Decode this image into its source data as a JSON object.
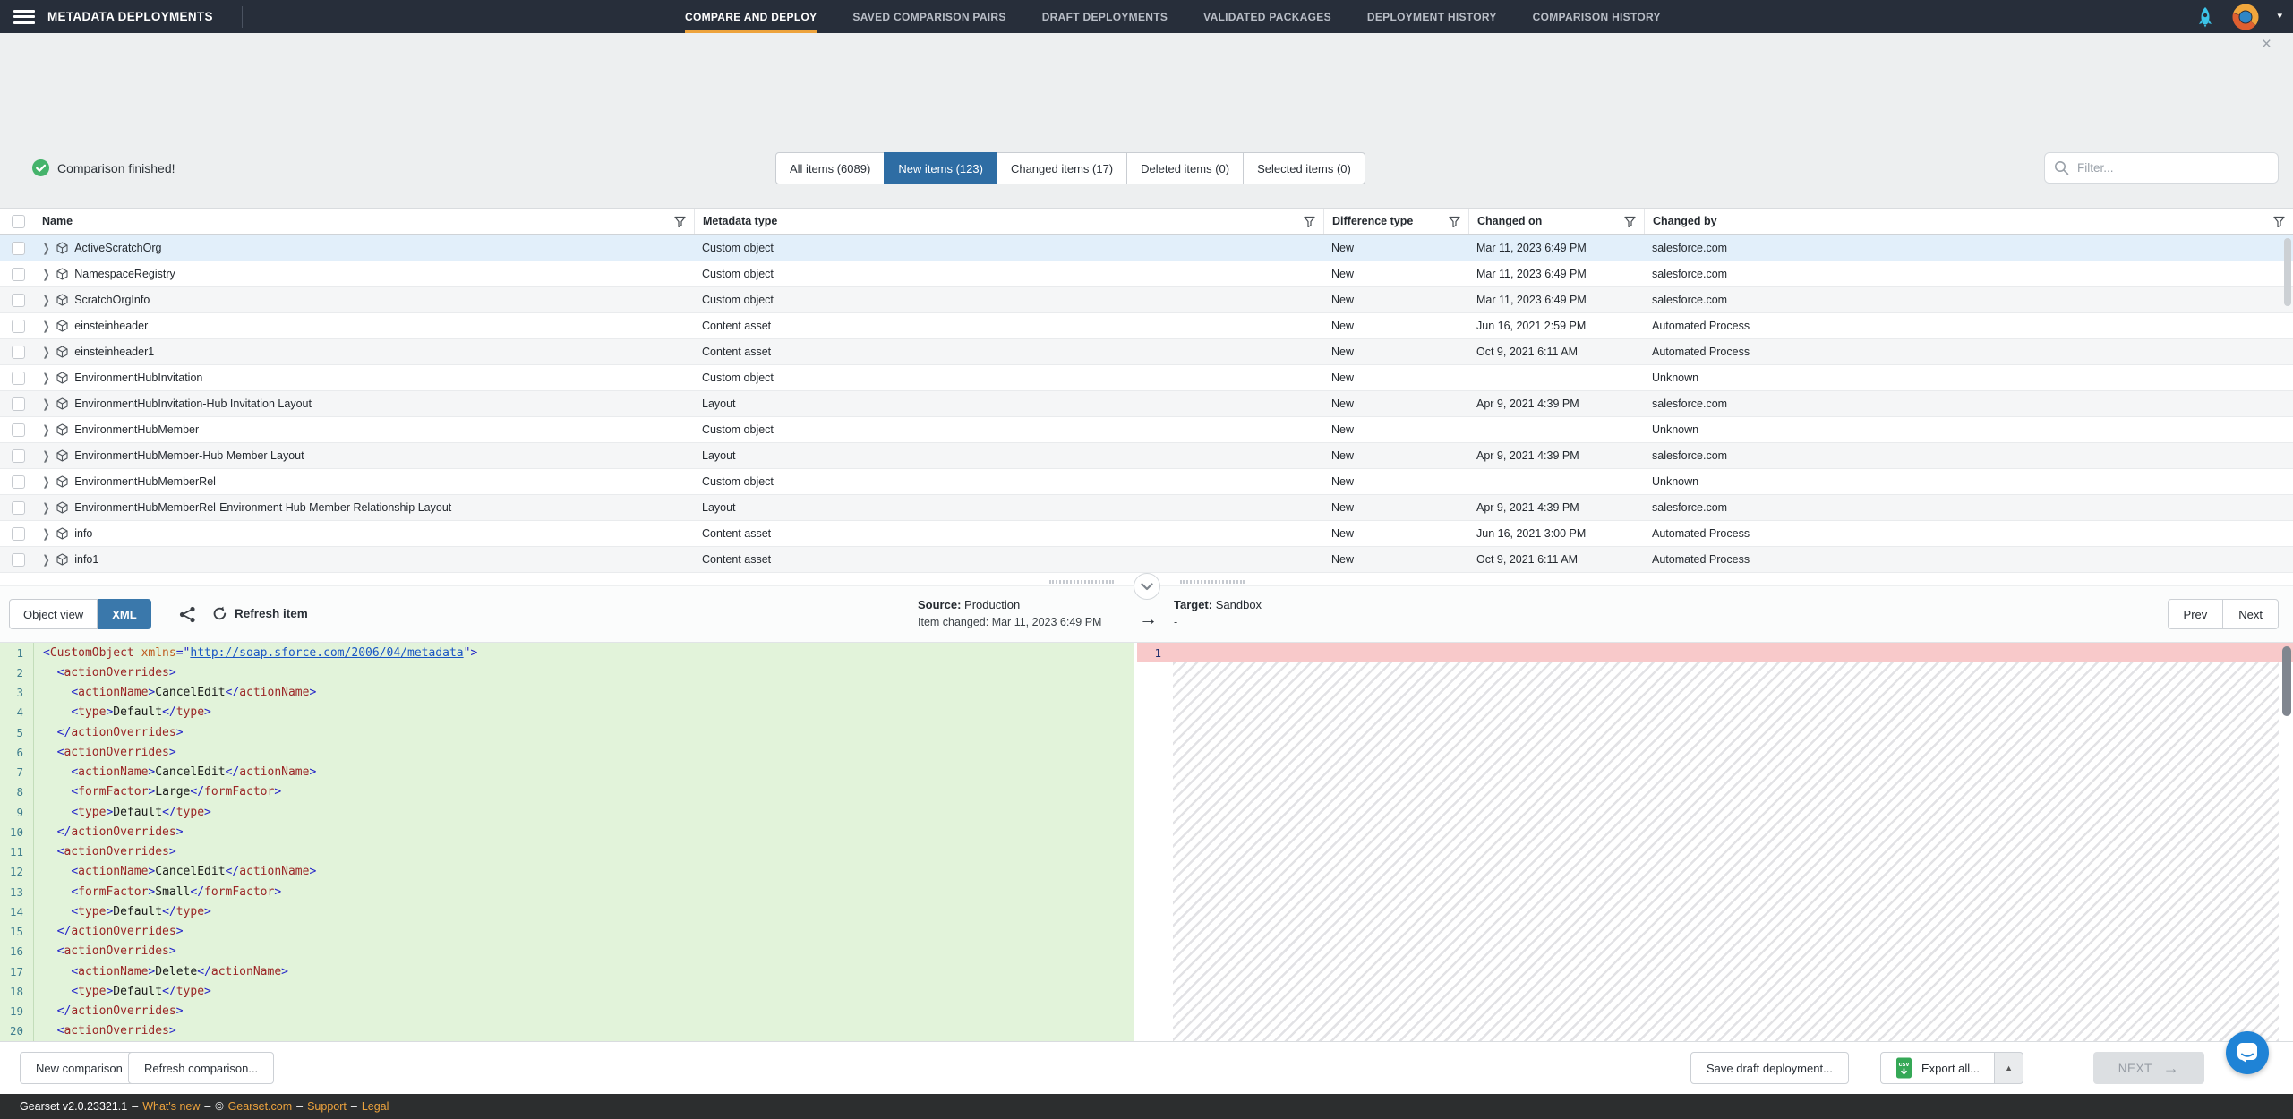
{
  "nav": {
    "title": "METADATA DEPLOYMENTS",
    "items": [
      {
        "label": "COMPARE AND DEPLOY",
        "active": true
      },
      {
        "label": "SAVED COMPARISON PAIRS",
        "active": false
      },
      {
        "label": "DRAFT DEPLOYMENTS",
        "active": false
      },
      {
        "label": "VALIDATED PACKAGES",
        "active": false
      },
      {
        "label": "DEPLOYMENT HISTORY",
        "active": false
      },
      {
        "label": "COMPARISON HISTORY",
        "active": false
      }
    ]
  },
  "icons": {
    "close": "×",
    "caret_down": "▾",
    "caret_up": "▲",
    "arrow_right": "→",
    "chevron_right": "❯",
    "csv_label": "csv"
  },
  "colors": {
    "accent_orange": "#eda33d",
    "active_tab_blue": "#2e6da4",
    "diff_added_green": "#e2f3da",
    "diff_removed_pink": "#f8c9ca",
    "success_green": "#45b36b",
    "intercom_blue": "#1f83d6"
  },
  "status": {
    "message": "Comparison finished!"
  },
  "item_tabs": [
    {
      "label": "All items (6089)",
      "active": false
    },
    {
      "label": "New items (123)",
      "active": true
    },
    {
      "label": "Changed items (17)",
      "active": false
    },
    {
      "label": "Deleted items (0)",
      "active": false
    },
    {
      "label": "Selected items (0)",
      "active": false
    }
  ],
  "filter": {
    "placeholder": "Filter..."
  },
  "table": {
    "columns": [
      "Name",
      "Metadata type",
      "Difference type",
      "Changed on",
      "Changed by"
    ],
    "rows": [
      {
        "name": "ActiveScratchOrg",
        "type": "Custom object",
        "diff": "New",
        "changed_on": "Mar 11, 2023 6:49 PM",
        "changed_by": "salesforce.com",
        "selected": true
      },
      {
        "name": "NamespaceRegistry",
        "type": "Custom object",
        "diff": "New",
        "changed_on": "Mar 11, 2023 6:49 PM",
        "changed_by": "salesforce.com",
        "selected": false
      },
      {
        "name": "ScratchOrgInfo",
        "type": "Custom object",
        "diff": "New",
        "changed_on": "Mar 11, 2023 6:49 PM",
        "changed_by": "salesforce.com",
        "selected": false
      },
      {
        "name": "einsteinheader",
        "type": "Content asset",
        "diff": "New",
        "changed_on": "Jun 16, 2021 2:59 PM",
        "changed_by": "Automated Process",
        "selected": false
      },
      {
        "name": "einsteinheader1",
        "type": "Content asset",
        "diff": "New",
        "changed_on": "Oct 9, 2021 6:11 AM",
        "changed_by": "Automated Process",
        "selected": false
      },
      {
        "name": "EnvironmentHubInvitation",
        "type": "Custom object",
        "diff": "New",
        "changed_on": "",
        "changed_by": "Unknown",
        "selected": false
      },
      {
        "name": "EnvironmentHubInvitation-Hub Invitation Layout",
        "type": "Layout",
        "diff": "New",
        "changed_on": "Apr 9, 2021 4:39 PM",
        "changed_by": "salesforce.com",
        "selected": false
      },
      {
        "name": "EnvironmentHubMember",
        "type": "Custom object",
        "diff": "New",
        "changed_on": "",
        "changed_by": "Unknown",
        "selected": false
      },
      {
        "name": "EnvironmentHubMember-Hub Member Layout",
        "type": "Layout",
        "diff": "New",
        "changed_on": "Apr 9, 2021 4:39 PM",
        "changed_by": "salesforce.com",
        "selected": false
      },
      {
        "name": "EnvironmentHubMemberRel",
        "type": "Custom object",
        "diff": "New",
        "changed_on": "",
        "changed_by": "Unknown",
        "selected": false
      },
      {
        "name": "EnvironmentHubMemberRel-Environment Hub Member Relationship Layout",
        "type": "Layout",
        "diff": "New",
        "changed_on": "Apr 9, 2021 4:39 PM",
        "changed_by": "salesforce.com",
        "selected": false
      },
      {
        "name": "info",
        "type": "Content asset",
        "diff": "New",
        "changed_on": "Jun 16, 2021 3:00 PM",
        "changed_by": "Automated Process",
        "selected": false
      },
      {
        "name": "info1",
        "type": "Content asset",
        "diff": "New",
        "changed_on": "Oct 9, 2021 6:11 AM",
        "changed_by": "Automated Process",
        "selected": false
      }
    ]
  },
  "detail": {
    "object_view_label": "Object view",
    "xml_label": "XML",
    "refresh_label": "Refresh item",
    "source": {
      "label": "Source:",
      "value": "Production",
      "sub": "Item changed: Mar 11, 2023 6:49 PM"
    },
    "target": {
      "label": "Target:",
      "value": "Sandbox",
      "sub": "-"
    },
    "prev_label": "Prev",
    "next_label": "Next",
    "right_line_number": "1",
    "xml_lines": [
      {
        "n": 1,
        "tokens": [
          [
            "p",
            "<"
          ],
          [
            "t",
            "CustomObject"
          ],
          [
            "x",
            " "
          ],
          [
            "a",
            "xmlns"
          ],
          [
            "p",
            "=\""
          ],
          [
            "u",
            "http://soap.sforce.com/2006/04/metadata"
          ],
          [
            "p",
            "\">"
          ]
        ]
      },
      {
        "n": 2,
        "tokens": [
          [
            "x",
            "  "
          ],
          [
            "p",
            "<"
          ],
          [
            "t",
            "actionOverrides"
          ],
          [
            "p",
            ">"
          ]
        ]
      },
      {
        "n": 3,
        "tokens": [
          [
            "x",
            "    "
          ],
          [
            "p",
            "<"
          ],
          [
            "t",
            "actionName"
          ],
          [
            "p",
            ">"
          ],
          [
            "x",
            "CancelEdit"
          ],
          [
            "p",
            "</"
          ],
          [
            "t",
            "actionName"
          ],
          [
            "p",
            ">"
          ]
        ]
      },
      {
        "n": 4,
        "tokens": [
          [
            "x",
            "    "
          ],
          [
            "p",
            "<"
          ],
          [
            "t",
            "type"
          ],
          [
            "p",
            ">"
          ],
          [
            "x",
            "Default"
          ],
          [
            "p",
            "</"
          ],
          [
            "t",
            "type"
          ],
          [
            "p",
            ">"
          ]
        ]
      },
      {
        "n": 5,
        "tokens": [
          [
            "x",
            "  "
          ],
          [
            "p",
            "</"
          ],
          [
            "t",
            "actionOverrides"
          ],
          [
            "p",
            ">"
          ]
        ]
      },
      {
        "n": 6,
        "tokens": [
          [
            "x",
            "  "
          ],
          [
            "p",
            "<"
          ],
          [
            "t",
            "actionOverrides"
          ],
          [
            "p",
            ">"
          ]
        ]
      },
      {
        "n": 7,
        "tokens": [
          [
            "x",
            "    "
          ],
          [
            "p",
            "<"
          ],
          [
            "t",
            "actionName"
          ],
          [
            "p",
            ">"
          ],
          [
            "x",
            "CancelEdit"
          ],
          [
            "p",
            "</"
          ],
          [
            "t",
            "actionName"
          ],
          [
            "p",
            ">"
          ]
        ]
      },
      {
        "n": 8,
        "tokens": [
          [
            "x",
            "    "
          ],
          [
            "p",
            "<"
          ],
          [
            "t",
            "formFactor"
          ],
          [
            "p",
            ">"
          ],
          [
            "x",
            "Large"
          ],
          [
            "p",
            "</"
          ],
          [
            "t",
            "formFactor"
          ],
          [
            "p",
            ">"
          ]
        ]
      },
      {
        "n": 9,
        "tokens": [
          [
            "x",
            "    "
          ],
          [
            "p",
            "<"
          ],
          [
            "t",
            "type"
          ],
          [
            "p",
            ">"
          ],
          [
            "x",
            "Default"
          ],
          [
            "p",
            "</"
          ],
          [
            "t",
            "type"
          ],
          [
            "p",
            ">"
          ]
        ]
      },
      {
        "n": 10,
        "tokens": [
          [
            "x",
            "  "
          ],
          [
            "p",
            "</"
          ],
          [
            "t",
            "actionOverrides"
          ],
          [
            "p",
            ">"
          ]
        ]
      },
      {
        "n": 11,
        "tokens": [
          [
            "x",
            "  "
          ],
          [
            "p",
            "<"
          ],
          [
            "t",
            "actionOverrides"
          ],
          [
            "p",
            ">"
          ]
        ]
      },
      {
        "n": 12,
        "tokens": [
          [
            "x",
            "    "
          ],
          [
            "p",
            "<"
          ],
          [
            "t",
            "actionName"
          ],
          [
            "p",
            ">"
          ],
          [
            "x",
            "CancelEdit"
          ],
          [
            "p",
            "</"
          ],
          [
            "t",
            "actionName"
          ],
          [
            "p",
            ">"
          ]
        ]
      },
      {
        "n": 13,
        "tokens": [
          [
            "x",
            "    "
          ],
          [
            "p",
            "<"
          ],
          [
            "t",
            "formFactor"
          ],
          [
            "p",
            ">"
          ],
          [
            "x",
            "Small"
          ],
          [
            "p",
            "</"
          ],
          [
            "t",
            "formFactor"
          ],
          [
            "p",
            ">"
          ]
        ]
      },
      {
        "n": 14,
        "tokens": [
          [
            "x",
            "    "
          ],
          [
            "p",
            "<"
          ],
          [
            "t",
            "type"
          ],
          [
            "p",
            ">"
          ],
          [
            "x",
            "Default"
          ],
          [
            "p",
            "</"
          ],
          [
            "t",
            "type"
          ],
          [
            "p",
            ">"
          ]
        ]
      },
      {
        "n": 15,
        "tokens": [
          [
            "x",
            "  "
          ],
          [
            "p",
            "</"
          ],
          [
            "t",
            "actionOverrides"
          ],
          [
            "p",
            ">"
          ]
        ]
      },
      {
        "n": 16,
        "tokens": [
          [
            "x",
            "  "
          ],
          [
            "p",
            "<"
          ],
          [
            "t",
            "actionOverrides"
          ],
          [
            "p",
            ">"
          ]
        ]
      },
      {
        "n": 17,
        "tokens": [
          [
            "x",
            "    "
          ],
          [
            "p",
            "<"
          ],
          [
            "t",
            "actionName"
          ],
          [
            "p",
            ">"
          ],
          [
            "x",
            "Delete"
          ],
          [
            "p",
            "</"
          ],
          [
            "t",
            "actionName"
          ],
          [
            "p",
            ">"
          ]
        ]
      },
      {
        "n": 18,
        "tokens": [
          [
            "x",
            "    "
          ],
          [
            "p",
            "<"
          ],
          [
            "t",
            "type"
          ],
          [
            "p",
            ">"
          ],
          [
            "x",
            "Default"
          ],
          [
            "p",
            "</"
          ],
          [
            "t",
            "type"
          ],
          [
            "p",
            ">"
          ]
        ]
      },
      {
        "n": 19,
        "tokens": [
          [
            "x",
            "  "
          ],
          [
            "p",
            "</"
          ],
          [
            "t",
            "actionOverrides"
          ],
          [
            "p",
            ">"
          ]
        ]
      },
      {
        "n": 20,
        "tokens": [
          [
            "x",
            "  "
          ],
          [
            "p",
            "<"
          ],
          [
            "t",
            "actionOverrides"
          ],
          [
            "p",
            ">"
          ]
        ]
      }
    ]
  },
  "actions": {
    "new_comparison": "New comparison",
    "refresh_comparison": "Refresh comparison...",
    "save_draft": "Save draft deployment...",
    "export_all": "Export all...",
    "next": "NEXT"
  },
  "footer": {
    "version": "Gearset v2.0.23321.1",
    "separator": "–",
    "whats_new": "What's new",
    "copyright": "©",
    "site": "Gearset.com",
    "support": "Support",
    "legal": "Legal"
  }
}
